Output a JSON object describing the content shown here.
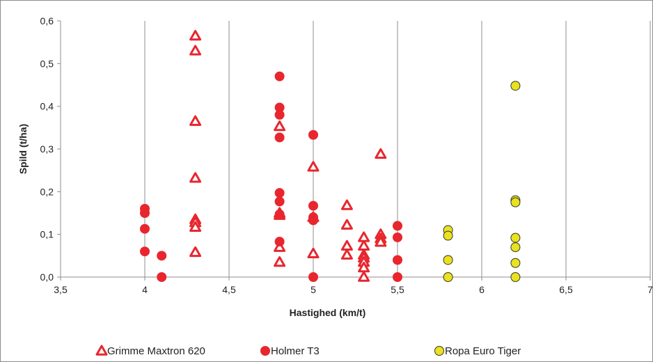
{
  "chart_data": {
    "type": "scatter",
    "xlabel": "Hastighed (km/t)",
    "ylabel": "Spild (t/ha)",
    "xlim": [
      3.5,
      7
    ],
    "ylim": [
      0,
      0.6
    ],
    "x_ticks": [
      "3,5",
      "4",
      "4,5",
      "5",
      "5,5",
      "6",
      "6,5",
      "7"
    ],
    "y_ticks": [
      "0,0",
      "0,1",
      "0,2",
      "0,3",
      "0,4",
      "0,5",
      "0,6"
    ],
    "grid": "vertical",
    "legend_position": "bottom",
    "series": [
      {
        "name": "Grimme Maxtron 620",
        "marker": "triangle",
        "color": "#e8262e",
        "points": [
          [
            4.3,
            0.565
          ],
          [
            4.3,
            0.53
          ],
          [
            4.3,
            0.365
          ],
          [
            4.3,
            0.232
          ],
          [
            4.3,
            0.135
          ],
          [
            4.3,
            0.128
          ],
          [
            4.3,
            0.117
          ],
          [
            4.3,
            0.058
          ],
          [
            4.8,
            0.353
          ],
          [
            4.8,
            0.15
          ],
          [
            4.8,
            0.145
          ],
          [
            4.8,
            0.07
          ],
          [
            4.8,
            0.035
          ],
          [
            5.0,
            0.258
          ],
          [
            5.0,
            0.14
          ],
          [
            5.0,
            0.055
          ],
          [
            5.2,
            0.168
          ],
          [
            5.2,
            0.122
          ],
          [
            5.2,
            0.073
          ],
          [
            5.2,
            0.052
          ],
          [
            5.3,
            0.093
          ],
          [
            5.3,
            0.073
          ],
          [
            5.3,
            0.052
          ],
          [
            5.3,
            0.045
          ],
          [
            5.3,
            0.035
          ],
          [
            5.3,
            0.022
          ],
          [
            5.3,
            0.0
          ],
          [
            5.4,
            0.288
          ],
          [
            5.4,
            0.1
          ],
          [
            5.4,
            0.09
          ],
          [
            5.4,
            0.082
          ]
        ]
      },
      {
        "name": "Holmer T3",
        "marker": "circle",
        "color": "#e8262e",
        "points": [
          [
            4.0,
            0.16
          ],
          [
            4.0,
            0.15
          ],
          [
            4.0,
            0.113
          ],
          [
            4.0,
            0.06
          ],
          [
            4.1,
            0.05
          ],
          [
            4.1,
            0.0
          ],
          [
            4.8,
            0.47
          ],
          [
            4.8,
            0.397
          ],
          [
            4.8,
            0.38
          ],
          [
            4.8,
            0.327
          ],
          [
            4.8,
            0.197
          ],
          [
            4.8,
            0.177
          ],
          [
            4.8,
            0.147
          ],
          [
            4.8,
            0.083
          ],
          [
            5.0,
            0.333
          ],
          [
            5.0,
            0.167
          ],
          [
            5.0,
            0.14
          ],
          [
            5.0,
            0.133
          ],
          [
            5.0,
            0.0
          ],
          [
            5.5,
            0.12
          ],
          [
            5.5,
            0.093
          ],
          [
            5.5,
            0.04
          ],
          [
            5.5,
            0.0
          ]
        ]
      },
      {
        "name": "Ropa Euro Tiger",
        "marker": "circle",
        "color": "#e9e21c",
        "points": [
          [
            5.8,
            0.11
          ],
          [
            5.8,
            0.097
          ],
          [
            5.8,
            0.04
          ],
          [
            5.8,
            0.0
          ],
          [
            6.2,
            0.448
          ],
          [
            6.2,
            0.18
          ],
          [
            6.2,
            0.175
          ],
          [
            6.2,
            0.092
          ],
          [
            6.2,
            0.07
          ],
          [
            6.2,
            0.033
          ],
          [
            6.2,
            0.0
          ]
        ]
      }
    ]
  }
}
